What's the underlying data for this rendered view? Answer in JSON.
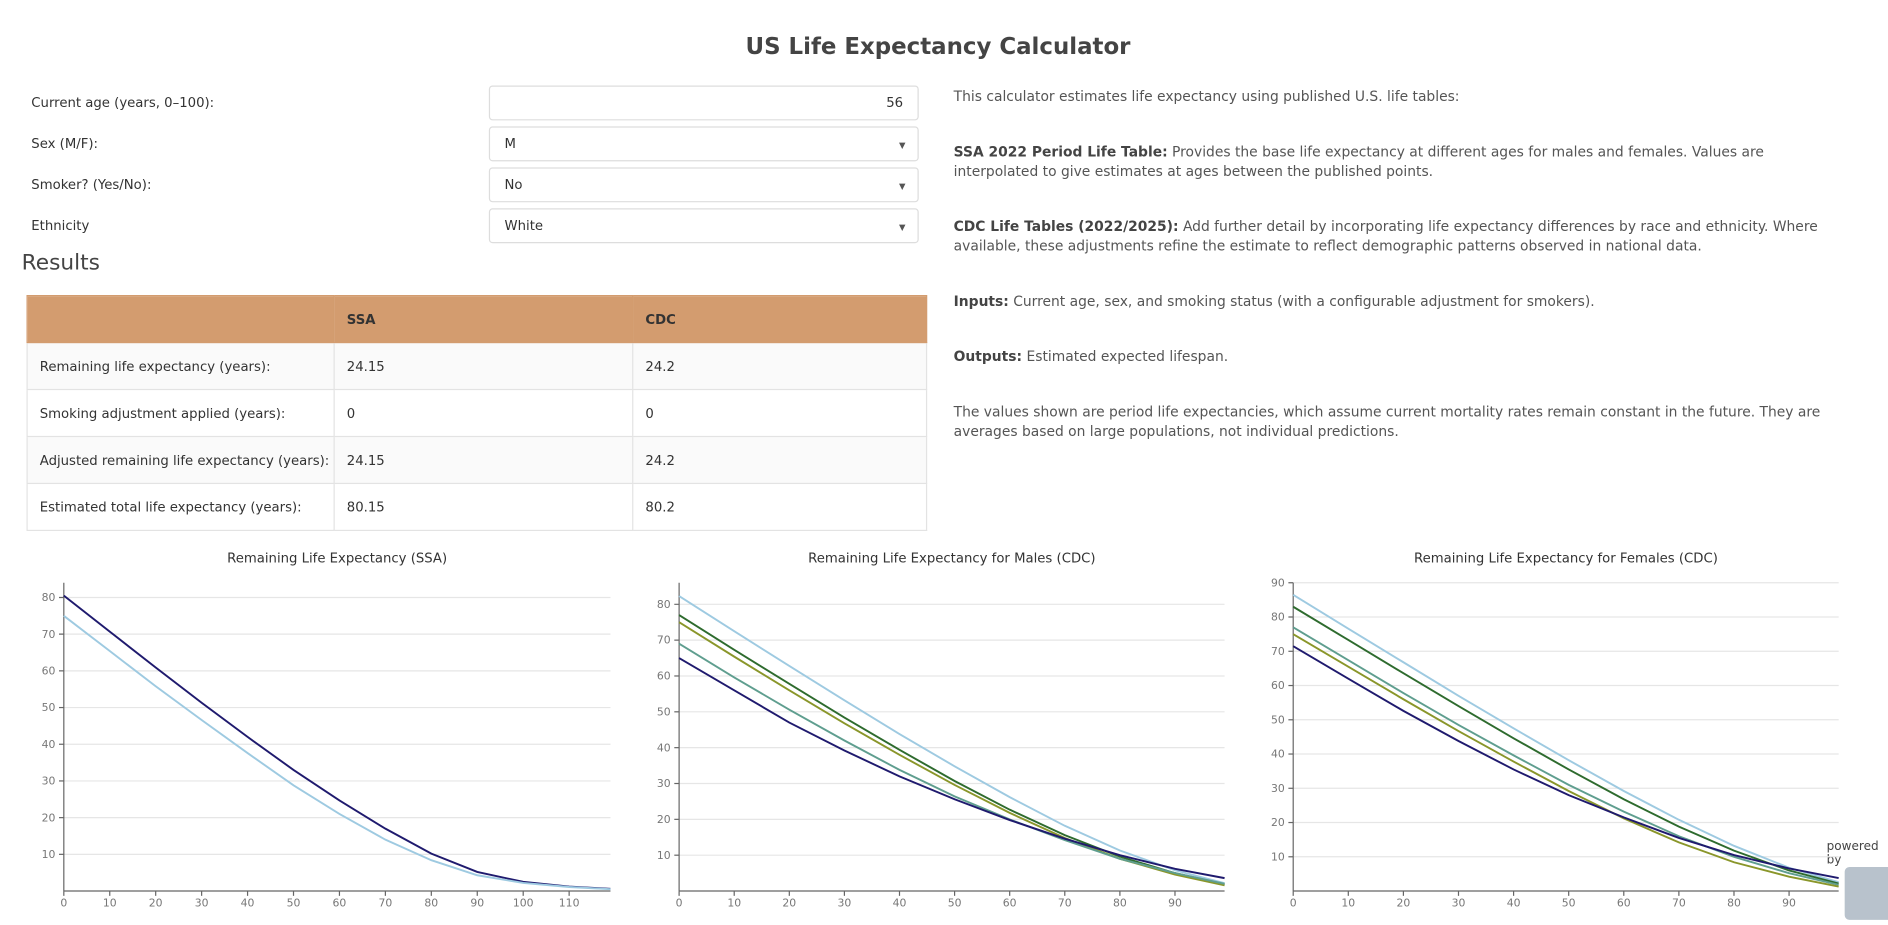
{
  "title": "US Life Expectancy Calculator",
  "form": [
    {
      "label": "Current age (years, 0–100):",
      "value": 56
    },
    {
      "label": "Sex (M/F):",
      "value": "M"
    },
    {
      "label": "Smoker? (Yes/No):",
      "value": "No"
    },
    {
      "label": "Ethnicity",
      "value": "White"
    }
  ],
  "results": {
    "heading": "Results",
    "columns": [
      "SSA",
      "CDC"
    ],
    "rows": [
      {
        "label": "Remaining life expectancy (years):",
        "values": [
          24.15,
          24.2
        ]
      },
      {
        "label": "Smoking adjustment applied (years):",
        "values": [
          0,
          0
        ]
      },
      {
        "label": "Adjusted remaining life expectancy (years):",
        "values": [
          24.15,
          24.2
        ]
      },
      {
        "label": "Estimated total life expectancy (years):",
        "values": [
          80.15,
          80.2
        ]
      }
    ]
  },
  "description": [
    {
      "text": "This calculator estimates life expectancy using published U.S. life tables:"
    },
    {
      "bold": "SSA 2022 Period Life Table:",
      "text": " Provides the base life expectancy at different ages for males and females. Values are interpolated to give estimates at ages between the published points."
    },
    {
      "bold": "CDC Life Tables (2022/2025):",
      "text": " Add further detail by incorporating life expectancy differences by race and ethnicity. Where available, these adjustments refine the estimate to reflect demographic patterns observed in national data."
    },
    {
      "bold": "Inputs:",
      "text": " Current age, sex, and smoking status (with a configurable adjustment for smokers)."
    },
    {
      "bold": "Outputs:",
      "text": " Estimated expected lifespan."
    },
    {
      "text": "The values shown are period life expectancies, which assume current mortality rates remain constant in the future. They are averages based on large populations, not individual predictions."
    }
  ],
  "powered_by": "powered by",
  "chart_data": [
    {
      "type": "line",
      "title": "Remaining Life Expectancy (SSA)",
      "x": [
        0,
        10,
        20,
        30,
        40,
        50,
        60,
        70,
        80,
        90,
        100,
        110,
        119
      ],
      "series": [
        {
          "color": "#1f1a6e",
          "values": [
            80.5,
            70.7,
            60.9,
            51.3,
            42,
            33,
            24.7,
            17,
            10.2,
            5.2,
            2.5,
            1.2,
            0.6
          ]
        },
        {
          "color": "#9ecae1",
          "values": [
            75,
            65.4,
            55.8,
            46.6,
            37.6,
            28.8,
            21,
            14,
            8.4,
            4.3,
            2.2,
            1.1,
            0.5
          ]
        }
      ],
      "xlim": [
        0,
        119
      ],
      "xticks": [
        0,
        10,
        20,
        30,
        40,
        50,
        60,
        70,
        80,
        90,
        100,
        110
      ],
      "ylim": [
        0,
        84
      ],
      "yticks": [
        10,
        20,
        30,
        40,
        50,
        60,
        70,
        80
      ],
      "grid": true
    },
    {
      "type": "line",
      "title": "Remaining Life Expectancy for Males (CDC)",
      "x": [
        0,
        10,
        20,
        30,
        40,
        50,
        60,
        70,
        80,
        90,
        99
      ],
      "series": [
        {
          "color": "#9ecae1",
          "values": [
            82.3,
            72.5,
            62.8,
            53.2,
            43.8,
            34.8,
            26.2,
            18.2,
            11.3,
            5.8,
            2.2
          ]
        },
        {
          "color": "#2e6b2e",
          "values": [
            77,
            67.3,
            57.8,
            48.4,
            39.4,
            30.7,
            22.7,
            15.6,
            9.6,
            5,
            1.8
          ]
        },
        {
          "color": "#8a962a",
          "values": [
            75,
            65.4,
            56,
            46.8,
            38,
            29.6,
            21.8,
            14.8,
            9,
            4.6,
            1.6
          ]
        },
        {
          "color": "#5f9e8f",
          "values": [
            69,
            59.6,
            50.6,
            42,
            33.8,
            26.4,
            20,
            14.2,
            9,
            5,
            2
          ]
        },
        {
          "color": "#1f1a6e",
          "values": [
            65,
            56,
            47,
            39.2,
            32,
            25.6,
            19.8,
            14.6,
            10,
            6.2,
            3.6
          ]
        }
      ],
      "xlim": [
        0,
        99
      ],
      "xticks": [
        0,
        10,
        20,
        30,
        40,
        50,
        60,
        70,
        80,
        90
      ],
      "ylim": [
        0,
        86
      ],
      "yticks": [
        10,
        20,
        30,
        40,
        50,
        60,
        70,
        80
      ],
      "grid": true
    },
    {
      "type": "line",
      "title": "Remaining Life Expectancy for Females (CDC)",
      "x": [
        0,
        10,
        20,
        30,
        40,
        50,
        60,
        70,
        80,
        90,
        99
      ],
      "series": [
        {
          "color": "#9ecae1",
          "values": [
            86.5,
            76.6,
            66.8,
            57,
            47.5,
            38.2,
            29.2,
            20.8,
            13.2,
            6.8,
            2.6
          ]
        },
        {
          "color": "#2e6b2e",
          "values": [
            83,
            73.3,
            63.6,
            54,
            44.6,
            35.5,
            26.8,
            18.8,
            11.8,
            6,
            2.2
          ]
        },
        {
          "color": "#5f9e8f",
          "values": [
            77,
            67.4,
            57.8,
            48.5,
            39.6,
            31,
            23.2,
            16,
            10,
            5.2,
            1.8
          ]
        },
        {
          "color": "#8a962a",
          "values": [
            75,
            65.5,
            56,
            46.7,
            37.8,
            29.2,
            21.2,
            14.2,
            8.4,
            4.2,
            1.3
          ]
        },
        {
          "color": "#1f1a6e",
          "values": [
            71.5,
            62,
            52.6,
            43.8,
            35.5,
            28,
            21.5,
            15.5,
            10.5,
            6.6,
            3.8
          ]
        }
      ],
      "xlim": [
        0,
        99
      ],
      "xticks": [
        0,
        10,
        20,
        30,
        40,
        50,
        60,
        70,
        80,
        90
      ],
      "ylim": [
        0,
        90
      ],
      "yticks": [
        10,
        20,
        30,
        40,
        50,
        60,
        70,
        80,
        90
      ],
      "grid": true
    }
  ]
}
